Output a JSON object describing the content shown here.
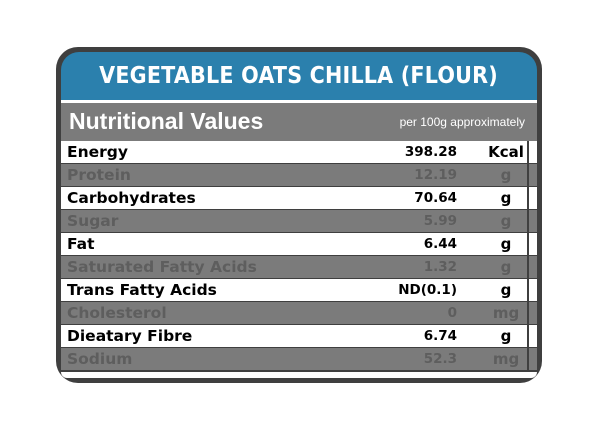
{
  "title": "VEGETABLE OATS CHILLA (FLOUR)",
  "header": {
    "heading": "Nutritional Values",
    "subheading": "per 100g approximately"
  },
  "rows": [
    {
      "name": "Energy",
      "value": "398.28",
      "unit": "Kcal"
    },
    {
      "name": "Protein",
      "value": "12.19",
      "unit": "g"
    },
    {
      "name": "Carbohydrates",
      "value": "70.64",
      "unit": "g"
    },
    {
      "name": "Sugar",
      "value": "5.99",
      "unit": "g"
    },
    {
      "name": "Fat",
      "value": "6.44",
      "unit": "g"
    },
    {
      "name": "Saturated Fatty Acids",
      "value": "1.32",
      "unit": "g"
    },
    {
      "name": "Trans Fatty Acids",
      "value": "ND(0.1)",
      "unit": "g"
    },
    {
      "name": "Cholesterol",
      "value": "0",
      "unit": "mg"
    },
    {
      "name": "Dieatary Fibre",
      "value": "6.74",
      "unit": "g"
    },
    {
      "name": "Sodium",
      "value": "52.3",
      "unit": "mg"
    }
  ],
  "colors": {
    "title_band": "#2b80ad",
    "frame": "#3f3f3f",
    "shaded_row": "#7b7b7b",
    "light_row": "#ffffff"
  }
}
